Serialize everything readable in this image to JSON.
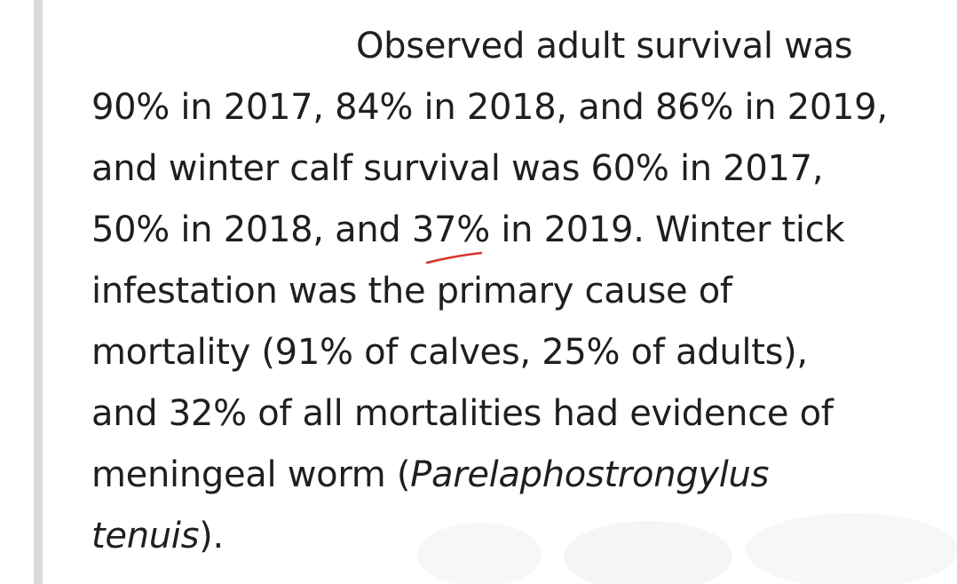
{
  "text": {
    "line1": "Observed adult survival was",
    "line2": "90% in 2017, 84% in 2018, and 86% in 2019,",
    "line3": "and winter calf survival was 60% in 2017,",
    "line4": "50% in 2018, and 37% in 2019. Winter tick",
    "line5": "infestation was the primary cause of",
    "line6": "mortality (91% of calves, 25% of adults),",
    "line7": "and 32% of all mortalities had evidence of",
    "line8_pre": "meningeal worm (",
    "line8_sci": "Parelaphostrongylus",
    "line9_sci": "tenuis",
    "line9_post": ")."
  },
  "colors": {
    "text": "#1f1f1f",
    "rule": "#d9d9d9",
    "annotation": "#d9342b"
  }
}
